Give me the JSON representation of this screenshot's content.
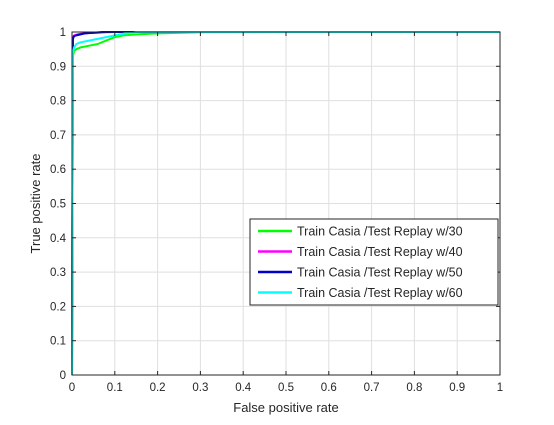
{
  "chart_data": {
    "type": "line",
    "title": "",
    "xlabel": "False positive rate",
    "ylabel": "True positive rate",
    "xlim": [
      0,
      1
    ],
    "ylim": [
      0,
      1
    ],
    "xticks": [
      0,
      0.1,
      0.2,
      0.3,
      0.4,
      0.5,
      0.6,
      0.7,
      0.8,
      0.9,
      1
    ],
    "yticks": [
      0,
      0.1,
      0.2,
      0.3,
      0.4,
      0.5,
      0.6,
      0.7,
      0.8,
      0.9,
      1
    ],
    "xtick_labels": [
      "0",
      "0.1",
      "0.2",
      "0.3",
      "0.4",
      "0.5",
      "0.6",
      "0.7",
      "0.8",
      "0.9",
      "1"
    ],
    "ytick_labels": [
      "0",
      "0.1",
      "0.2",
      "0.3",
      "0.4",
      "0.5",
      "0.6",
      "0.7",
      "0.8",
      "0.9",
      "1"
    ],
    "grid": true,
    "legend_position": "lower-right",
    "series": [
      {
        "name": "Train Casia /Test Replay w/30",
        "color": "#00ff00",
        "x": [
          0,
          0.002,
          0.005,
          0.01,
          0.02,
          0.04,
          0.06,
          0.08,
          0.1,
          0.12,
          0.15,
          0.2,
          0.3,
          0.5,
          1.0
        ],
        "y": [
          0,
          0.93,
          0.945,
          0.95,
          0.955,
          0.96,
          0.965,
          0.975,
          0.985,
          0.99,
          0.993,
          0.996,
          0.999,
          1.0,
          1.0
        ]
      },
      {
        "name": "Train Casia /Test Replay w/40",
        "color": "#ff00ff",
        "x": [
          0,
          0.002,
          0.005,
          0.01,
          0.02,
          0.04,
          0.06,
          0.08,
          0.1,
          1.0
        ],
        "y": [
          0,
          0.985,
          0.99,
          0.992,
          0.995,
          0.997,
          0.998,
          0.999,
          1.0,
          1.0
        ]
      },
      {
        "name": "Train Casia /Test Replay w/50",
        "color": "#0000cc",
        "x": [
          0,
          0.002,
          0.005,
          0.01,
          0.02,
          0.03,
          0.05,
          0.07,
          1.0
        ],
        "y": [
          0,
          0.98,
          0.988,
          0.99,
          0.993,
          0.996,
          0.998,
          1.0,
          1.0
        ]
      },
      {
        "name": "Train Casia /Test Replay w/60",
        "color": "#00ffff",
        "x": [
          0,
          0.002,
          0.005,
          0.01,
          0.02,
          0.04,
          0.06,
          0.08,
          0.1,
          0.12,
          0.15,
          1.0
        ],
        "y": [
          0,
          0.94,
          0.955,
          0.965,
          0.97,
          0.975,
          0.98,
          0.985,
          0.99,
          0.995,
          1.0,
          1.0
        ]
      }
    ]
  }
}
